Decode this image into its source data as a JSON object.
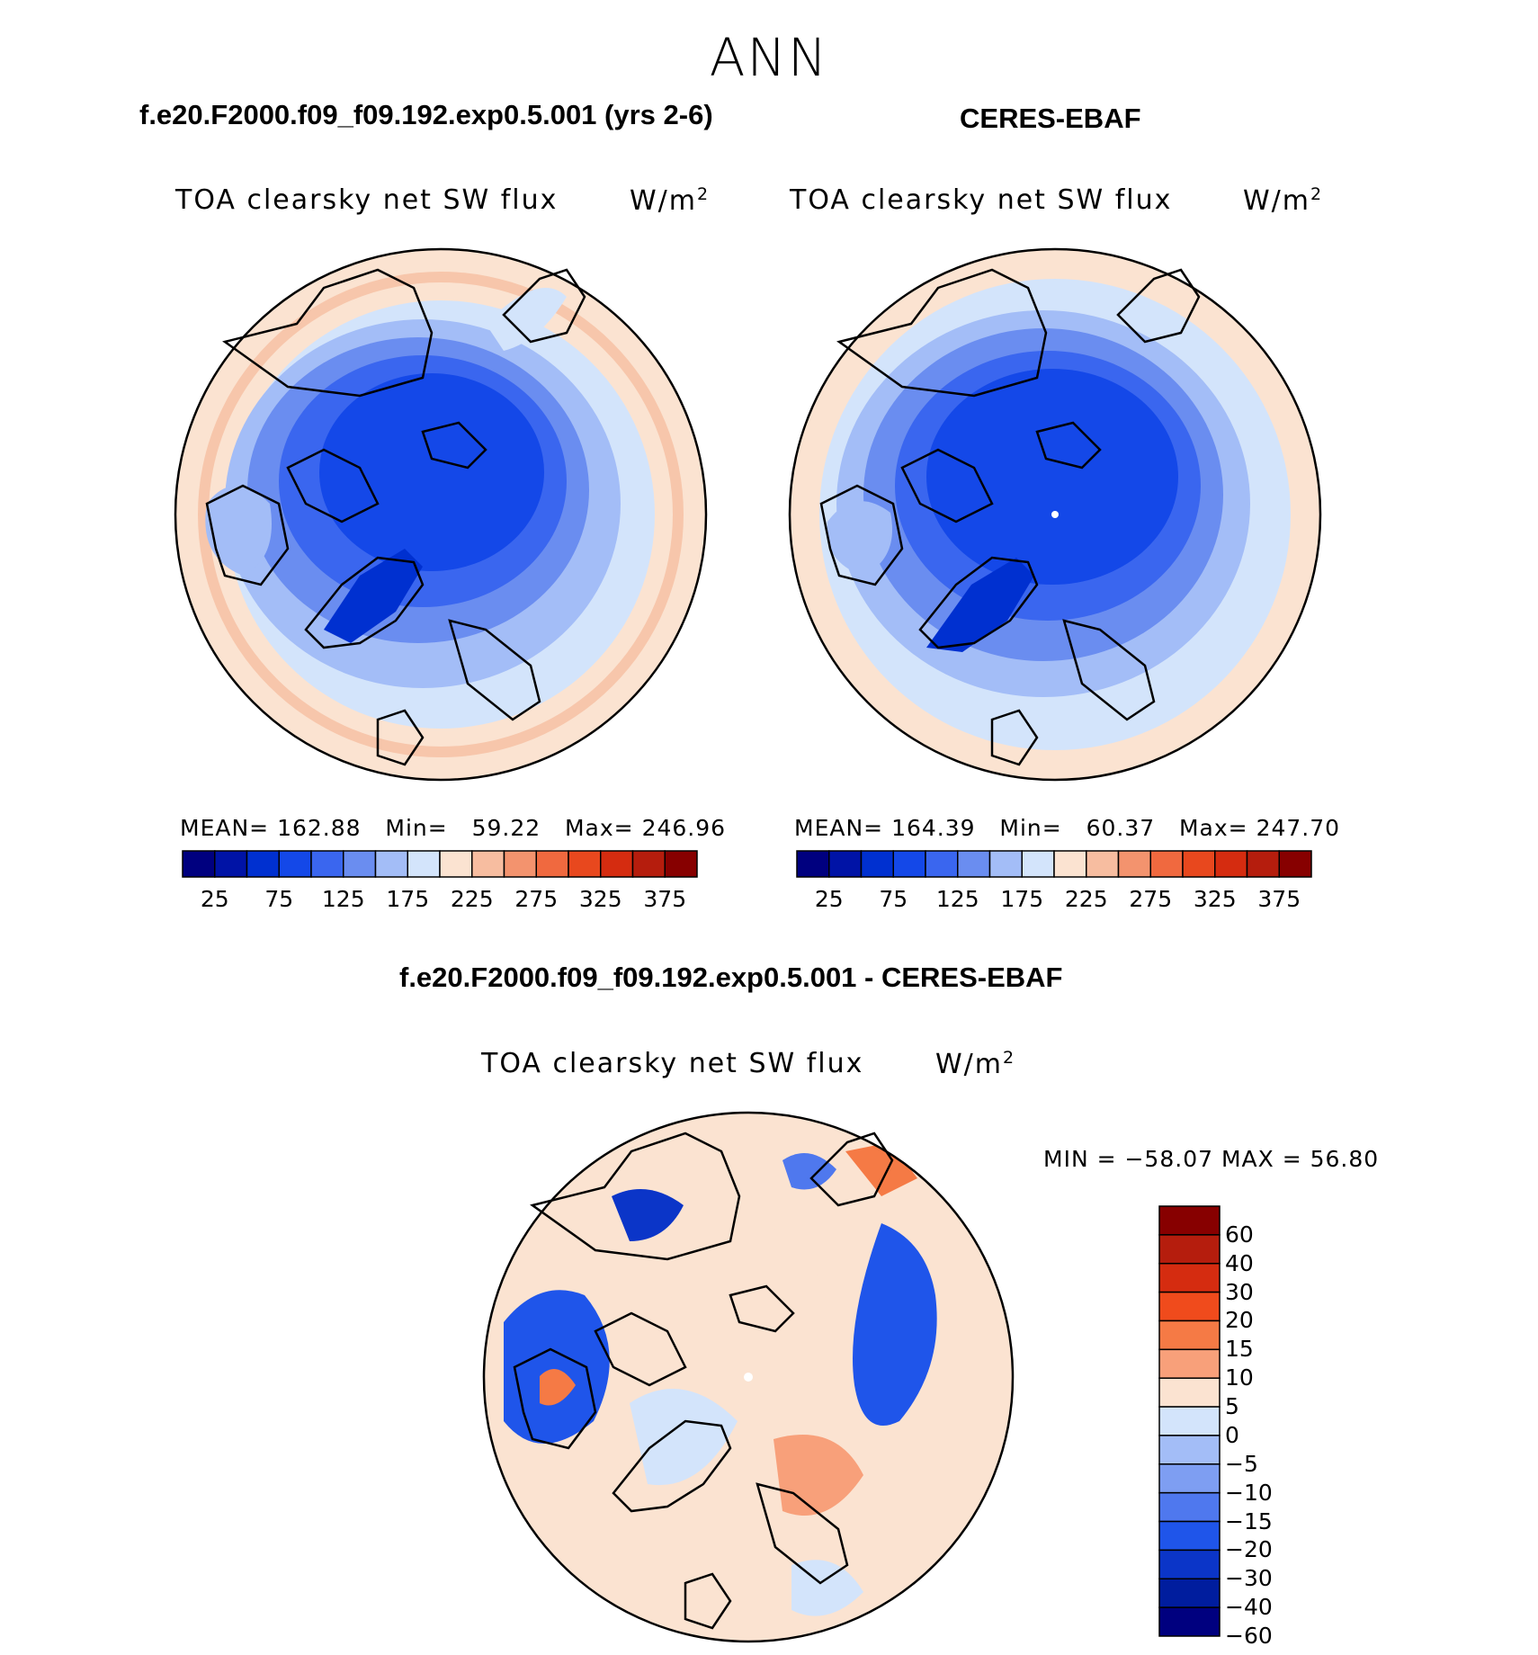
{
  "season": "ANN",
  "panels": [
    {
      "title": "f.e20.F2000.f09_f09.192.exp0.5.001 (yrs 2-6)",
      "var_label": "TOA clearsky net SW flux",
      "units": "W/m",
      "units_sup": "2",
      "stats": {
        "mean_label": "MEAN=",
        "mean": "162.88",
        "min_label": "Min=",
        "min": "59.22",
        "max_label": "Max=",
        "max": "246.96"
      }
    },
    {
      "title": "CERES-EBAF",
      "var_label": "TOA clearsky net SW flux",
      "units": "W/m",
      "units_sup": "2",
      "stats": {
        "mean_label": "MEAN=",
        "mean": "164.39",
        "min_label": "Min=",
        "min": "60.37",
        "max_label": "Max=",
        "max": "247.70"
      }
    }
  ],
  "diff_panel": {
    "title": "f.e20.F2000.f09_f09.192.exp0.5.001 - CERES-EBAF",
    "var_label": "TOA clearsky net SW flux",
    "units": "W/m",
    "units_sup": "2",
    "minmax": "MIN = −58.07  MAX =   56.80"
  },
  "colorbar_main": {
    "labels": [
      "25",
      "75",
      "125",
      "175",
      "225",
      "275",
      "325",
      "375"
    ],
    "colors": [
      "#00007f",
      "#0013a6",
      "#0030d0",
      "#1448e8",
      "#3a66ef",
      "#6a8df0",
      "#a3bdf7",
      "#d3e4fb",
      "#fbe3d1",
      "#f7bda0",
      "#f3936e",
      "#f0693f",
      "#e8481e",
      "#d52c10",
      "#b51d0d",
      "#870000"
    ]
  },
  "colorbar_diff": {
    "labels": [
      "60",
      "40",
      "30",
      "20",
      "15",
      "10",
      "5",
      "0",
      "−5",
      "−10",
      "−15",
      "−20",
      "−30",
      "−40",
      "−60"
    ],
    "colors": [
      "#870000",
      "#b51d0d",
      "#d52c10",
      "#f04b1c",
      "#f57a45",
      "#f8a07a",
      "#fbe3d1",
      "#d3e4fb",
      "#a3bdf7",
      "#7e9ef2",
      "#4f78ee",
      "#1f55ea",
      "#0b35c8",
      "#001d9e",
      "#00007f"
    ]
  }
}
